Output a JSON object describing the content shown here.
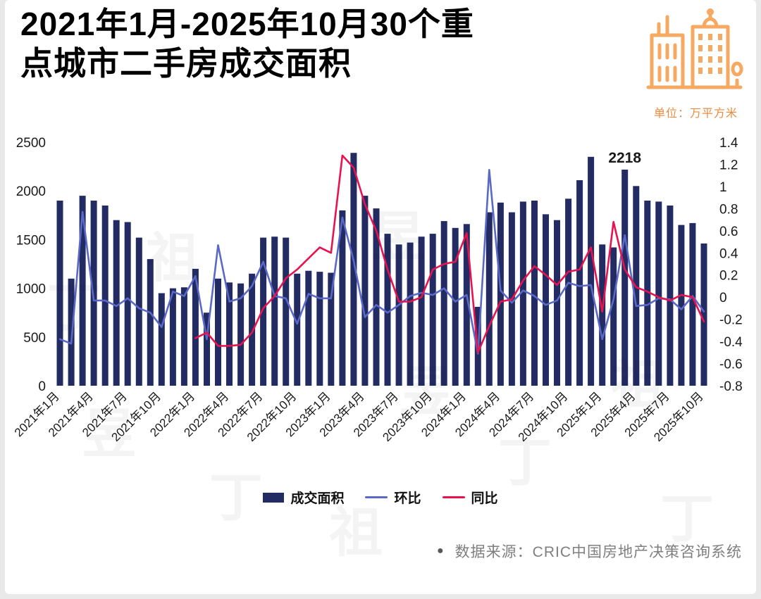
{
  "header": {
    "title_line1": "2021年1月-2025年10月30个重",
    "title_line2": "点城市二手房成交面积",
    "unit_label": "单位：万平方米",
    "brand_icon": "city-buildings-icon"
  },
  "colors": {
    "bar": "#232b63",
    "mom_line": "#5a69c7",
    "yoy_line": "#e8134e",
    "accent_orange": "#f5a963",
    "source_gray": "#7f7f7f"
  },
  "chart_data": {
    "type": "bar+line combo",
    "title": "2021年1月-2025年10月30个重点城市二手房成交面积",
    "unit": "万平方米",
    "grid": "off",
    "legend_position": "bottom",
    "x_tick_every": 3,
    "categories": [
      "2021年1月",
      "2021年2月",
      "2021年3月",
      "2021年4月",
      "2021年5月",
      "2021年6月",
      "2021年7月",
      "2021年8月",
      "2021年9月",
      "2021年10月",
      "2021年11月",
      "2021年12月",
      "2022年1月",
      "2022年2月",
      "2022年3月",
      "2022年4月",
      "2022年5月",
      "2022年6月",
      "2022年7月",
      "2022年8月",
      "2022年9月",
      "2022年10月",
      "2022年11月",
      "2022年12月",
      "2023年1月",
      "2023年2月",
      "2023年3月",
      "2023年4月",
      "2023年5月",
      "2023年6月",
      "2023年7月",
      "2023年8月",
      "2023年9月",
      "2023年10月",
      "2023年11月",
      "2023年12月",
      "2024年1月",
      "2024年2月",
      "2024年3月",
      "2024年4月",
      "2024年5月",
      "2024年6月",
      "2024年7月",
      "2024年8月",
      "2024年9月",
      "2024年10月",
      "2024年11月",
      "2024年12月",
      "2025年1月",
      "2025年2月",
      "2025年3月",
      "2025年4月",
      "2025年5月",
      "2025年6月",
      "2025年7月",
      "2025年8月",
      "2025年9月",
      "2025年10月"
    ],
    "series": [
      {
        "name": "成交面积",
        "type": "bar",
        "axis": "left",
        "values": [
          1900,
          1100,
          1950,
          1900,
          1850,
          1700,
          1680,
          1520,
          1300,
          950,
          1000,
          1010,
          1200,
          750,
          1100,
          1060,
          1050,
          1150,
          1520,
          1530,
          1520,
          1150,
          1180,
          1170,
          1160,
          1800,
          2390,
          1950,
          1820,
          1560,
          1450,
          1470,
          1530,
          1560,
          1690,
          1620,
          1660,
          810,
          1780,
          1880,
          1780,
          1890,
          1900,
          1760,
          1700,
          1920,
          2110,
          2350,
          1450,
          1420,
          2218,
          2050,
          1900,
          1890,
          1850,
          1650,
          1670,
          1460
        ]
      },
      {
        "name": "环比",
        "type": "line",
        "axis": "right",
        "values": [
          -0.38,
          -0.42,
          0.77,
          -0.03,
          -0.03,
          -0.08,
          -0.01,
          -0.1,
          -0.14,
          -0.27,
          0.05,
          0.01,
          0.19,
          -0.38,
          0.47,
          -0.04,
          -0.01,
          0.1,
          0.32,
          0.01,
          -0.01,
          -0.24,
          0.03,
          -0.01,
          -0.01,
          0.72,
          0.33,
          -0.18,
          -0.07,
          -0.14,
          -0.07,
          0.01,
          0.04,
          0.02,
          0.08,
          -0.04,
          0.02,
          -0.51,
          1.15,
          0.06,
          -0.05,
          0.06,
          0.01,
          -0.07,
          -0.03,
          0.13,
          0.1,
          0.11,
          -0.38,
          -0.02,
          0.56,
          -0.08,
          -0.07,
          -0.01,
          -0.02,
          -0.11,
          0.01,
          -0.13
        ]
      },
      {
        "name": "同比",
        "type": "line",
        "axis": "right",
        "values": [
          null,
          null,
          null,
          null,
          null,
          null,
          null,
          null,
          null,
          null,
          null,
          null,
          -0.37,
          -0.32,
          -0.44,
          -0.44,
          -0.43,
          -0.32,
          -0.1,
          0.01,
          0.17,
          0.25,
          0.35,
          0.45,
          0.4,
          1.28,
          1.17,
          0.84,
          0.6,
          0.25,
          -0.04,
          -0.04,
          0.0,
          0.25,
          0.3,
          0.32,
          0.58,
          -0.5,
          -0.26,
          -0.04,
          -0.02,
          0.15,
          0.28,
          0.2,
          0.11,
          0.23,
          0.25,
          0.45,
          -0.13,
          0.68,
          0.25,
          0.09,
          0.05,
          0.0,
          -0.03,
          0.02,
          0.0,
          -0.22
        ]
      }
    ],
    "left_axis": {
      "min": 0,
      "max": 2500,
      "ticks": [
        0,
        500,
        1000,
        1500,
        2000,
        2500
      ],
      "tick_labels": [
        "0",
        "500",
        "1000",
        "1500",
        "2000",
        "2500"
      ]
    },
    "right_axis": {
      "min": -0.8,
      "max": 1.4,
      "ticks": [
        -0.8,
        -0.6,
        -0.4,
        -0.2,
        0,
        0.2,
        0.4,
        0.6,
        0.8,
        1,
        1.2,
        1.4
      ],
      "tick_labels": [
        "-0.8",
        "-0.6",
        "-0.4",
        "-0.2",
        "0",
        "0.2",
        "0.4",
        "0.6",
        "0.8",
        "1",
        "1.2",
        "1.4"
      ]
    },
    "annotation": {
      "index": 50,
      "label": "2218"
    }
  },
  "legend": {
    "items": [
      {
        "label": "成交面积",
        "swatch": "bar"
      },
      {
        "label": "环比",
        "swatch": "line-blue"
      },
      {
        "label": "同比",
        "swatch": "line-red"
      }
    ]
  },
  "source": {
    "bullet": "●",
    "text": "数据来源：CRIC中国房地产决策咨询系统"
  },
  "watermark": {
    "chars": [
      "丁",
      "祖",
      "昱"
    ]
  }
}
